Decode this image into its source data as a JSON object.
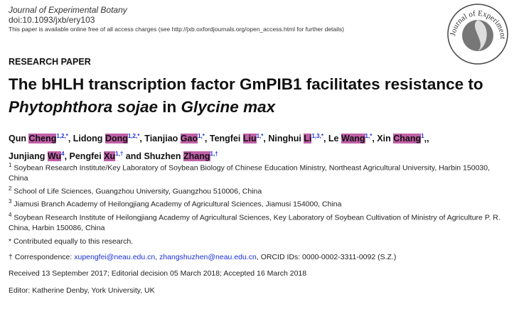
{
  "header": {
    "journal": "Journal of Experimental Botany",
    "doi": "doi:10.1093/jxb/ery103",
    "access": "This paper is available online free of all access charges (see http://jxb.oxfordjournals.org/open_access.html for further details)",
    "logo_text": "Journal of Experimental Botany"
  },
  "article_type": "RESEARCH PAPER",
  "title": {
    "part1": "The bHLH transcription factor GmPIB1 facilitates resistance to ",
    "italic1": "Phytophthora sojae",
    "part2": " in ",
    "italic2": "Glycine max"
  },
  "authors": [
    {
      "given": "Qun",
      "family": "Cheng",
      "sup": "1,2,*"
    },
    {
      "given": "Lidong",
      "family": "Dong",
      "sup": "1,2,*"
    },
    {
      "given": "Tianjiao",
      "family": "Gao",
      "sup": "1,*"
    },
    {
      "given": "Tengfei",
      "family": "Liu",
      "sup": "1,*"
    },
    {
      "given": "Ninghui",
      "family": "Li",
      "sup": "1,3,*"
    },
    {
      "given": "Le",
      "family": "Wang",
      "sup": "1,*"
    },
    {
      "given": "Xin",
      "family": "Chang",
      "sup": "1"
    },
    {
      "given": "Junjiang",
      "family": "Wu",
      "sup": "4"
    },
    {
      "given": "Pengfei",
      "family": "Xu",
      "sup": "1,†"
    },
    {
      "given": "Shuzhen",
      "family": "Zhang",
      "sup": "1,†"
    }
  ],
  "highlight_color": "#c060a8",
  "affiliations": [
    {
      "n": "1",
      "text": "Soybean Research Institute/Key Laboratory of Soybean Biology of Chinese Education Ministry, Northeast Agricultural University, Harbin 150030, China"
    },
    {
      "n": "2",
      "text": "School of Life Sciences, Guangzhou University, Guangzhou 510006, China"
    },
    {
      "n": "3",
      "text": "Jiamusi Branch Academy of Heilongjiang Academy of Agricultural Sciences, Jiamusi 154000, China"
    },
    {
      "n": "4",
      "text": "Soybean Research Institute of Heilongjiang Academy of Agricultural Sciences, Key Laboratory of Soybean Cultivation of Ministry of Agriculture P. R. China, Harbin 150086, China"
    }
  ],
  "contributed": "* Contributed equally to this research.",
  "correspondence": {
    "label": "† Correspondence: ",
    "email1": "xupengfei@neau.edu.cn",
    "sep": ", ",
    "email2": "zhangshuzhen@neau.edu.cn",
    "orcid": ", ORCID IDs: 0000-0002-3311-0092 (S.Z.)"
  },
  "dates": "Received 13 September 2017; Editorial decision 05 March 2018; Accepted 16 March 2018",
  "editor": "Editor: Katherine Denby, York University, UK"
}
